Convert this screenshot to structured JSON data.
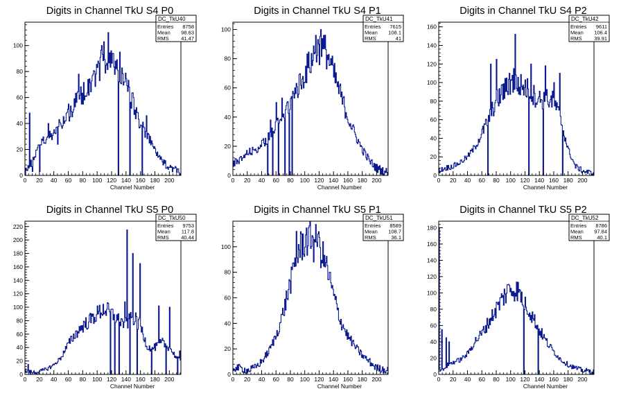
{
  "chart_data": [
    {
      "type": "histogram",
      "title": "Digits in Channel TkU S4 P0",
      "xlabel": "Channel Number",
      "xlim": [
        0,
        216
      ],
      "ylim": [
        0,
        118
      ],
      "xticks": [
        0,
        20,
        40,
        60,
        80,
        100,
        120,
        140,
        160,
        180,
        200
      ],
      "yticks": [
        0,
        20,
        40,
        60,
        80,
        100
      ],
      "stats": {
        "name": "DC_TkU40",
        "entries": "8758",
        "mean": "98.63",
        "rms": "41.47"
      },
      "profile": [
        [
          0,
          3
        ],
        [
          10,
          10
        ],
        [
          20,
          25
        ],
        [
          30,
          28
        ],
        [
          40,
          33
        ],
        [
          50,
          40
        ],
        [
          60,
          47
        ],
        [
          70,
          56
        ],
        [
          80,
          63
        ],
        [
          90,
          72
        ],
        [
          100,
          80
        ],
        [
          110,
          92
        ],
        [
          120,
          88
        ],
        [
          130,
          82
        ],
        [
          140,
          72
        ],
        [
          150,
          55
        ],
        [
          160,
          40
        ],
        [
          170,
          30
        ],
        [
          180,
          20
        ],
        [
          190,
          10
        ],
        [
          200,
          7
        ],
        [
          210,
          4
        ],
        [
          216,
          3
        ]
      ],
      "spikes": [
        [
          6,
          48
        ],
        [
          10,
          3
        ],
        [
          20,
          3
        ],
        [
          32,
          40
        ],
        [
          45,
          24
        ],
        [
          50,
          38
        ],
        [
          60,
          55
        ],
        [
          74,
          78
        ],
        [
          106,
          100
        ],
        [
          115,
          110
        ],
        [
          119,
          96
        ],
        [
          129,
          0
        ],
        [
          131,
          95
        ],
        [
          145,
          0
        ],
        [
          150,
          60
        ],
        [
          162,
          0
        ],
        [
          168,
          46
        ]
      ]
    },
    {
      "type": "histogram",
      "title": "Digits in Channel TkU S4 P1",
      "xlabel": "Channel Number",
      "xlim": [
        0,
        216
      ],
      "ylim": [
        0,
        105
      ],
      "xticks": [
        0,
        20,
        40,
        60,
        80,
        100,
        120,
        140,
        160,
        180,
        200
      ],
      "yticks": [
        0,
        20,
        40,
        60,
        80,
        100
      ],
      "stats": {
        "name": "DC_TkU41",
        "entries": "7615",
        "mean": "108.1",
        "rms": "41"
      },
      "profile": [
        [
          0,
          8
        ],
        [
          10,
          10
        ],
        [
          20,
          15
        ],
        [
          30,
          17
        ],
        [
          40,
          21
        ],
        [
          50,
          26
        ],
        [
          60,
          33
        ],
        [
          70,
          42
        ],
        [
          80,
          50
        ],
        [
          90,
          60
        ],
        [
          100,
          70
        ],
        [
          110,
          80
        ],
        [
          120,
          88
        ],
        [
          130,
          85
        ],
        [
          140,
          70
        ],
        [
          150,
          55
        ],
        [
          160,
          40
        ],
        [
          170,
          28
        ],
        [
          180,
          18
        ],
        [
          190,
          10
        ],
        [
          200,
          5
        ],
        [
          210,
          3
        ],
        [
          216,
          2
        ]
      ],
      "spikes": [
        [
          48,
          0
        ],
        [
          52,
          38
        ],
        [
          55,
          0
        ],
        [
          60,
          50
        ],
        [
          63,
          0
        ],
        [
          68,
          53
        ],
        [
          72,
          0
        ],
        [
          75,
          50
        ],
        [
          78,
          0
        ],
        [
          82,
          0
        ],
        [
          86,
          60
        ],
        [
          96,
          66
        ],
        [
          115,
          96
        ],
        [
          122,
          100
        ]
      ]
    },
    {
      "type": "histogram",
      "title": "Digits in Channel TkU S4 P2",
      "xlabel": "Channel Number",
      "xlim": [
        0,
        216
      ],
      "ylim": [
        0,
        165
      ],
      "xticks": [
        0,
        20,
        40,
        60,
        80,
        100,
        120,
        140,
        160,
        180,
        200
      ],
      "yticks": [
        0,
        20,
        40,
        60,
        80,
        100,
        120,
        140,
        160
      ],
      "stats": {
        "name": "DC_TkU42",
        "entries": "9611",
        "mean": "106.4",
        "rms": "39.91"
      },
      "profile": [
        [
          0,
          5
        ],
        [
          10,
          8
        ],
        [
          20,
          10
        ],
        [
          30,
          14
        ],
        [
          40,
          20
        ],
        [
          50,
          30
        ],
        [
          60,
          45
        ],
        [
          70,
          62
        ],
        [
          80,
          80
        ],
        [
          90,
          90
        ],
        [
          100,
          100
        ],
        [
          110,
          98
        ],
        [
          120,
          95
        ],
        [
          130,
          88
        ],
        [
          140,
          82
        ],
        [
          150,
          82
        ],
        [
          160,
          80
        ],
        [
          170,
          60
        ],
        [
          180,
          28
        ],
        [
          190,
          10
        ],
        [
          200,
          5
        ],
        [
          210,
          3
        ],
        [
          216,
          2
        ]
      ],
      "spikes": [
        [
          68,
          0
        ],
        [
          72,
          120
        ],
        [
          80,
          125
        ],
        [
          88,
          98
        ],
        [
          98,
          110
        ],
        [
          104,
          115
        ],
        [
          106,
          152
        ],
        [
          112,
          95
        ],
        [
          125,
          0
        ],
        [
          128,
          120
        ],
        [
          145,
          0
        ],
        [
          148,
          118
        ],
        [
          160,
          100
        ],
        [
          168,
          110
        ],
        [
          172,
          0
        ]
      ]
    },
    {
      "type": "histogram",
      "title": "Digits in Channel TkU S5 P0",
      "xlabel": "Channel Number",
      "xlim": [
        0,
        216
      ],
      "ylim": [
        0,
        228
      ],
      "xticks": [
        0,
        20,
        40,
        60,
        80,
        100,
        120,
        140,
        160,
        180,
        200
      ],
      "yticks": [
        0,
        20,
        40,
        60,
        80,
        100,
        120,
        140,
        160,
        180,
        200,
        220
      ],
      "stats": {
        "name": "DC_TkU50",
        "entries": "9753",
        "mean": "117.8",
        "rms": "40.44"
      },
      "profile": [
        [
          0,
          5
        ],
        [
          10,
          3
        ],
        [
          20,
          4
        ],
        [
          30,
          8
        ],
        [
          40,
          14
        ],
        [
          50,
          25
        ],
        [
          60,
          45
        ],
        [
          70,
          60
        ],
        [
          80,
          72
        ],
        [
          90,
          80
        ],
        [
          100,
          90
        ],
        [
          110,
          98
        ],
        [
          120,
          90
        ],
        [
          130,
          80
        ],
        [
          140,
          75
        ],
        [
          150,
          85
        ],
        [
          160,
          72
        ],
        [
          170,
          40
        ],
        [
          180,
          40
        ],
        [
          190,
          48
        ],
        [
          200,
          40
        ],
        [
          210,
          25
        ],
        [
          216,
          20
        ]
      ],
      "spikes": [
        [
          4,
          15
        ],
        [
          118,
          0
        ],
        [
          124,
          0
        ],
        [
          130,
          0
        ],
        [
          138,
          108
        ],
        [
          141,
          215
        ],
        [
          145,
          0
        ],
        [
          149,
          180
        ],
        [
          155,
          0
        ],
        [
          159,
          165
        ],
        [
          175,
          0
        ],
        [
          185,
          102
        ],
        [
          195,
          0
        ],
        [
          200,
          100
        ],
        [
          211,
          0
        ],
        [
          214,
          35
        ]
      ]
    },
    {
      "type": "histogram",
      "title": "Digits in Channel TkU S5 P1",
      "xlabel": "Channel Number",
      "xlim": [
        0,
        216
      ],
      "ylim": [
        0,
        120
      ],
      "xticks": [
        0,
        20,
        40,
        60,
        80,
        100,
        120,
        140,
        160,
        180,
        200
      ],
      "yticks": [
        0,
        20,
        40,
        60,
        80,
        100
      ],
      "stats": {
        "name": "DC_TkU51",
        "entries": "8589",
        "mean": "108.7",
        "rms": "36.1"
      },
      "profile": [
        [
          0,
          5
        ],
        [
          10,
          5
        ],
        [
          20,
          3
        ],
        [
          30,
          5
        ],
        [
          40,
          10
        ],
        [
          50,
          18
        ],
        [
          60,
          30
        ],
        [
          70,
          48
        ],
        [
          80,
          72
        ],
        [
          90,
          95
        ],
        [
          100,
          105
        ],
        [
          110,
          108
        ],
        [
          120,
          100
        ],
        [
          130,
          85
        ],
        [
          140,
          62
        ],
        [
          150,
          42
        ],
        [
          160,
          30
        ],
        [
          170,
          22
        ],
        [
          180,
          15
        ],
        [
          190,
          10
        ],
        [
          200,
          5
        ],
        [
          210,
          4
        ],
        [
          216,
          3
        ]
      ],
      "spikes": [
        [
          82,
          82
        ],
        [
          88,
          112
        ],
        [
          95,
          110
        ],
        [
          105,
          115
        ],
        [
          112,
          88
        ],
        [
          118,
          110
        ]
      ]
    },
    {
      "type": "histogram",
      "title": "Digits in Channel TkU S5 P2",
      "xlabel": "Channel Number",
      "xlim": [
        0,
        216
      ],
      "ylim": [
        0,
        188
      ],
      "xticks": [
        0,
        20,
        40,
        60,
        80,
        100,
        120,
        140,
        160,
        180,
        200
      ],
      "yticks": [
        0,
        20,
        40,
        60,
        80,
        100,
        120,
        140,
        160,
        180
      ],
      "stats": {
        "name": "DC_TkU52",
        "entries": "8786",
        "mean": "97.84",
        "rms": "40.1"
      },
      "profile": [
        [
          0,
          5
        ],
        [
          10,
          10
        ],
        [
          20,
          15
        ],
        [
          30,
          18
        ],
        [
          40,
          25
        ],
        [
          50,
          40
        ],
        [
          60,
          50
        ],
        [
          70,
          65
        ],
        [
          80,
          80
        ],
        [
          90,
          95
        ],
        [
          100,
          105
        ],
        [
          110,
          103
        ],
        [
          120,
          88
        ],
        [
          130,
          72
        ],
        [
          140,
          55
        ],
        [
          150,
          40
        ],
        [
          160,
          28
        ],
        [
          170,
          18
        ],
        [
          180,
          12
        ],
        [
          190,
          8
        ],
        [
          200,
          5
        ],
        [
          210,
          4
        ],
        [
          216,
          3
        ]
      ],
      "spikes": [
        [
          0,
          180
        ],
        [
          4,
          55
        ],
        [
          6,
          5
        ],
        [
          10,
          45
        ],
        [
          14,
          40
        ],
        [
          95,
          110
        ],
        [
          118,
          0
        ],
        [
          138,
          0
        ]
      ]
    }
  ]
}
